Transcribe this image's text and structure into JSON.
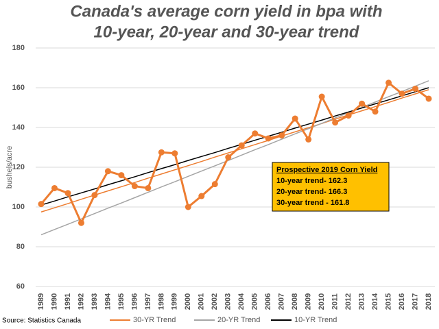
{
  "chart_data": {
    "type": "line",
    "title": [
      "Canada's average corn yield in bpa with",
      "10-year, 20-year and 30-year trend"
    ],
    "y_label": "bushels/acre",
    "source": "Source: Statistics Canada",
    "categories": [
      "1989",
      "1990",
      "1991",
      "1992",
      "1993",
      "1994",
      "1995",
      "1996",
      "1997",
      "1998",
      "1999",
      "2000",
      "2001",
      "2002",
      "2003",
      "2004",
      "2005",
      "2006",
      "2007",
      "2008",
      "2009",
      "2010",
      "2011",
      "2012",
      "2013",
      "2014",
      "2015",
      "2016",
      "2017",
      "2018"
    ],
    "values": [
      101.5,
      109.5,
      107,
      92,
      106,
      118,
      116,
      110.5,
      109.5,
      127.5,
      127,
      100,
      105.5,
      111.5,
      125,
      131,
      137,
      134.5,
      136,
      144.5,
      134,
      155.5,
      142.5,
      146,
      152,
      148,
      162.5,
      157,
      159.5,
      154.5
    ],
    "color": "#ed7d31",
    "series": [
      {
        "name": "30-YR Trend",
        "color": "#ed7d31",
        "values": [
          97.5,
          99.6,
          101.7,
          103.9,
          106.0,
          108.1,
          110.2,
          112.3,
          114.5,
          116.6,
          118.7,
          120.8,
          122.9,
          125.1,
          127.2,
          129.3,
          131.4,
          133.5,
          135.7,
          137.8,
          139.9,
          142.0,
          144.2,
          146.3,
          148.4,
          150.5,
          152.6,
          154.8,
          156.9,
          159.0
        ]
      },
      {
        "name": "20-YR Trend",
        "color": "#a5a5a5",
        "values": [
          86.0,
          88.7,
          91.3,
          94.0,
          96.7,
          99.4,
          102.0,
          104.7,
          107.4,
          110.1,
          112.7,
          115.4,
          118.1,
          120.7,
          123.4,
          126.1,
          128.8,
          131.4,
          134.1,
          136.8,
          139.4,
          142.1,
          144.8,
          147.5,
          150.1,
          152.8,
          155.5,
          158.1,
          160.8,
          163.5
        ]
      },
      {
        "name": "10-YR Trend",
        "color": "#000000",
        "values": [
          101.0,
          103.0,
          105.1,
          107.1,
          109.1,
          111.2,
          113.2,
          115.2,
          117.3,
          119.3,
          121.3,
          123.4,
          125.4,
          127.4,
          129.5,
          131.5,
          133.6,
          135.6,
          137.6,
          139.7,
          141.7,
          143.7,
          145.8,
          147.8,
          149.8,
          151.9,
          153.9,
          155.9,
          158.0,
          160.0
        ]
      }
    ],
    "annotation": {
      "title": "Prospective 2019 Corn Yield",
      "lines": [
        "10-year trend- 162.3",
        "20-year trend- 166.3",
        "30-year trend - 161.8"
      ],
      "color": "#ffc000"
    },
    "ylim": [
      60,
      180
    ],
    "yticks": [
      60,
      80,
      100,
      120,
      140,
      160,
      180
    ],
    "grid": true,
    "legend": "bottom"
  }
}
